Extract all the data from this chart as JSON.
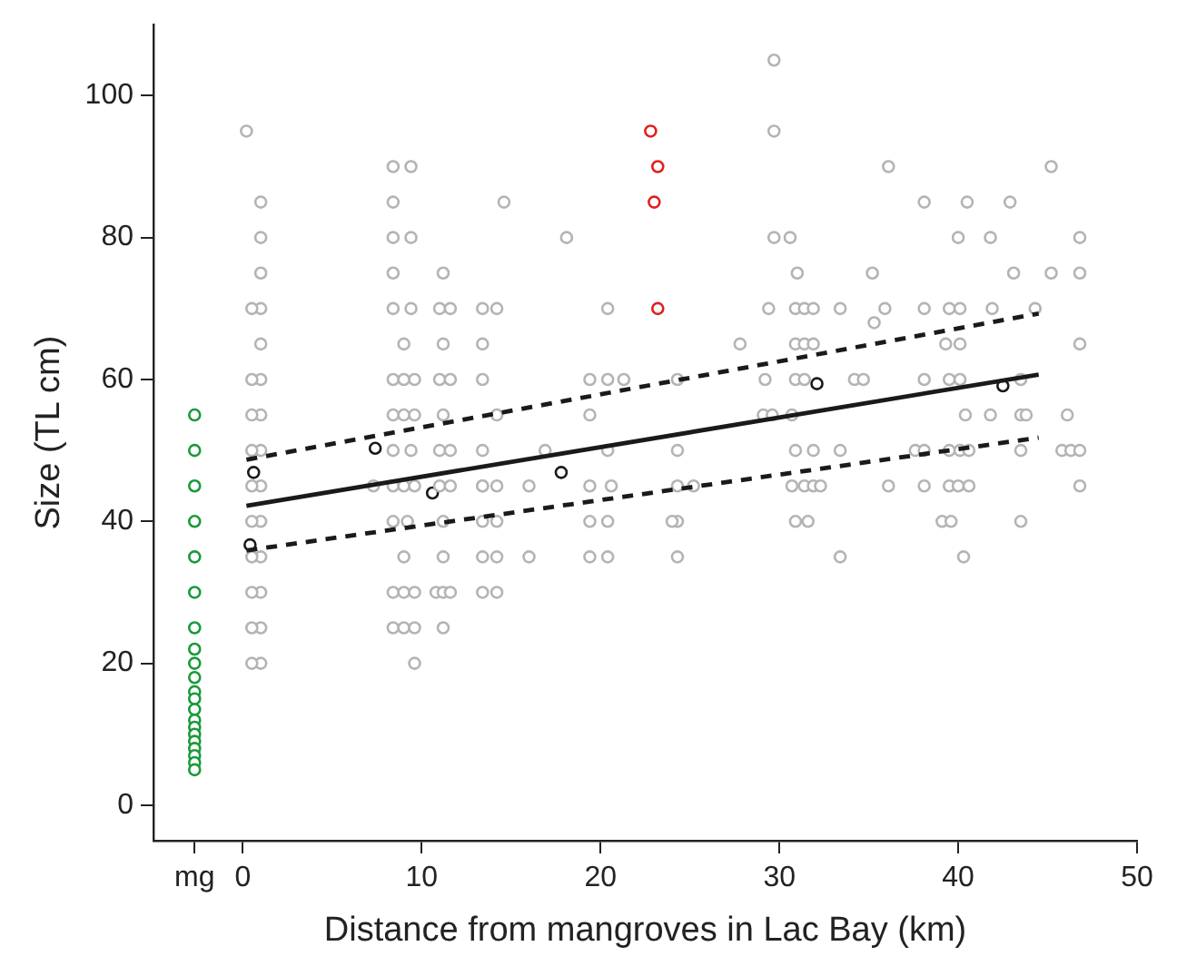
{
  "chart_data": {
    "type": "scatter",
    "xlabel": "Distance from mangroves in Lac Bay (km)",
    "ylabel": "Size (TL cm)",
    "xlim": [
      -5,
      50
    ],
    "ylim": [
      -5,
      110
    ],
    "xticks": [
      {
        "value": -2.7,
        "label": "mg"
      },
      0,
      10,
      20,
      30,
      40,
      50
    ],
    "yticks": [
      0,
      20,
      40,
      60,
      80,
      100
    ],
    "grid": false,
    "legend": false,
    "marker": "circle",
    "series": [
      {
        "color": "#1a9a3a",
        "x": [
          -2.7,
          -2.7,
          -2.7,
          -2.7,
          -2.7,
          -2.7,
          -2.7,
          -2.7,
          -2.7,
          -2.7,
          -2.7,
          -2.7,
          -2.7,
          -2.7,
          -2.7,
          -2.7,
          -2.7,
          -2.7,
          -2.7,
          -2.7,
          -2.7
        ],
        "values": [
          55,
          50,
          45,
          40,
          35,
          30,
          25,
          22,
          20,
          18,
          16,
          15,
          13.5,
          12,
          11,
          10,
          9,
          8,
          7,
          6,
          5
        ]
      },
      {
        "color": "#b4b4b4",
        "x": [
          0.2,
          1,
          1,
          1,
          1,
          1,
          1,
          1,
          1,
          1,
          1,
          1,
          1,
          1,
          1,
          0.5,
          0.5,
          0.5,
          0.5,
          0.5,
          0.5,
          0.5,
          0.5,
          0.5,
          0.5,
          8.4,
          9.4,
          8.4,
          8.4,
          9.4,
          8.4,
          8.4,
          9.4,
          9,
          8.4,
          9,
          9.6,
          8.4,
          9,
          9.6,
          8.4,
          9.4,
          7.3,
          8.4,
          9,
          9.6,
          8.4,
          9.2,
          9,
          8.4,
          9,
          9.6,
          8.4,
          9,
          9.6,
          9.6,
          11.2,
          11,
          11.6,
          11.2,
          11,
          11.6,
          11.2,
          11,
          11.6,
          11,
          11.6,
          11.2,
          11.2,
          10.8,
          11.2,
          11.6,
          11.2,
          14.6,
          13.4,
          14.2,
          13.4,
          13.4,
          13.4,
          14.2,
          13.4,
          13.4,
          14.2,
          13.4,
          14.2,
          13.4,
          14.2,
          13.4,
          14.2,
          16,
          16,
          16.9,
          18.1,
          19.4,
          19.4,
          19.4,
          19.4,
          19.4,
          20.4,
          20.4,
          20.4,
          20.6,
          20.4,
          20.4,
          21.3,
          24.3,
          24.3,
          24.3,
          24.3,
          24.3,
          25.2,
          24,
          27.8,
          29.7,
          29.7,
          36.1,
          45.2,
          38.1,
          40.5,
          42.9,
          29.7,
          30.6,
          40,
          41.8,
          46.8,
          31,
          35.2,
          43.1,
          45.2,
          46.8,
          29.4,
          30.9,
          31.4,
          31.9,
          33.4,
          35.9,
          38.1,
          39.5,
          40.1,
          41.9,
          44.3,
          35.3,
          30.9,
          31.4,
          31.9,
          39.3,
          40.1,
          46.8,
          29.2,
          30.9,
          31.4,
          34.2,
          34.7,
          38.1,
          39.5,
          40.1,
          43.5,
          29.1,
          29.6,
          30.7,
          40.4,
          41.8,
          43.5,
          43.8,
          46.1,
          30.9,
          31.9,
          33.4,
          37.6,
          38.1,
          39.5,
          40.1,
          40.6,
          43.5,
          45.8,
          46.3,
          46.8,
          30.7,
          31.4,
          31.9,
          32.3,
          36.1,
          38.1,
          39.5,
          40,
          40.6,
          46.8,
          30.9,
          31.6,
          39.1,
          39.6,
          43.5,
          33.4,
          40.3
        ],
        "values": [
          95,
          85,
          80,
          75,
          70,
          65,
          60,
          55,
          50,
          45,
          40,
          35,
          30,
          25,
          20,
          70,
          60,
          55,
          50,
          45,
          40,
          35,
          30,
          25,
          20,
          90,
          90,
          85,
          80,
          80,
          75,
          70,
          70,
          65,
          60,
          60,
          60,
          55,
          55,
          55,
          50,
          50,
          45,
          45,
          45,
          45,
          40,
          40,
          35,
          30,
          30,
          30,
          25,
          25,
          25,
          20,
          75,
          70,
          70,
          65,
          60,
          60,
          55,
          50,
          50,
          45,
          45,
          40,
          35,
          30,
          30,
          30,
          25,
          85,
          70,
          70,
          65,
          60,
          50,
          55,
          45,
          40,
          40,
          35,
          35,
          30,
          30,
          45,
          45,
          45,
          35,
          50,
          80,
          60,
          55,
          45,
          40,
          35,
          70,
          60,
          50,
          45,
          40,
          35,
          60,
          60,
          50,
          45,
          40,
          35,
          45,
          40,
          65,
          105,
          95,
          90,
          90,
          85,
          85,
          85,
          80,
          80,
          80,
          80,
          80,
          75,
          75,
          75,
          75,
          75,
          70,
          70,
          70,
          70,
          70,
          70,
          70,
          70,
          70,
          70,
          70,
          68,
          65,
          65,
          65,
          65,
          65,
          65,
          60,
          60,
          60,
          60,
          60,
          60,
          60,
          60,
          60,
          55,
          55,
          55,
          55,
          55,
          55,
          55,
          55,
          50,
          50,
          50,
          50,
          50,
          50,
          50,
          50,
          50,
          50,
          50,
          50,
          45,
          45,
          45,
          45,
          45,
          45,
          45,
          45,
          45,
          45,
          40,
          40,
          40,
          40,
          40,
          35,
          35
        ]
      },
      {
        "color": "#e02020",
        "x": [
          22.8,
          23.2,
          23,
          23.2
        ],
        "values": [
          95,
          90,
          85,
          70
        ]
      },
      {
        "color": "#1a1a1a",
        "x": [
          0.6,
          0.4,
          7.4,
          10.6,
          17.8,
          32.1,
          42.5
        ],
        "values": [
          46.9,
          36.7,
          50.3,
          44,
          46.9,
          59.4,
          59.1
        ]
      },
      {
        "type": "line",
        "color": "#1a1a1a",
        "line_style": "solid",
        "marker": "none",
        "x": [
          0.2,
          44.5
        ],
        "values": [
          42.2,
          60.7
        ]
      },
      {
        "type": "line",
        "color": "#1a1a1a",
        "line_style": "dashed",
        "marker": "none",
        "x": [
          0.2,
          44.5
        ],
        "values": [
          48.7,
          69.3
        ]
      },
      {
        "type": "line",
        "color": "#1a1a1a",
        "line_style": "dashed",
        "marker": "none",
        "x": [
          0.2,
          44.5
        ],
        "values": [
          35.9,
          51.8
        ]
      }
    ]
  }
}
